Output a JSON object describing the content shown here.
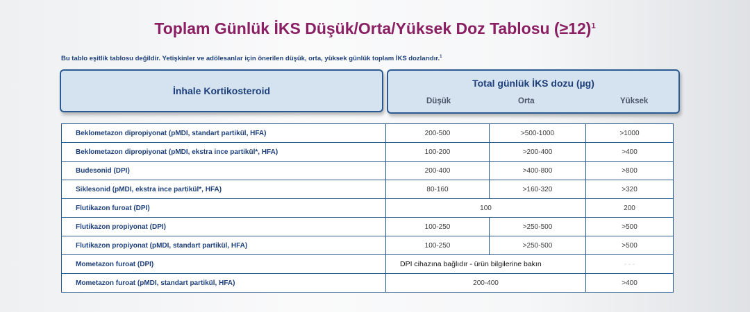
{
  "title": "Toplam Günlük İKS Düşük/Orta/Yüksek Doz Tablosu (≥12)",
  "title_sup": "1",
  "note": "Bu tablo eşitlik tablosu değildir. Yetişkinler ve adölesanlar için önerilen düşük, orta, yüksek günlük toplam İKS dozlarıdır.",
  "note_sup": "1",
  "header": {
    "left": "İnhale Kortikosteroid",
    "right": "Total günlük İKS dozu (µg)",
    "low": "Düşük",
    "mid": "Orta",
    "high": "Yüksek"
  },
  "rows": [
    {
      "name": "Beklometazon dipropiyonat (pMDI, standart partikül, HFA)",
      "low": "200-500",
      "mid": ">500-1000",
      "high": ">1000"
    },
    {
      "name": "Beklometazon dipropiyonat (pMDI, ekstra ince partikül*, HFA)",
      "low": "100-200",
      "mid": ">200-400",
      "high": ">400"
    },
    {
      "name": "Budesonid (DPI)",
      "low": "200-400",
      "mid": ">400-800",
      "high": ">800"
    },
    {
      "name": "Siklesonid (pMDI, ekstra ince partikül*, HFA)",
      "low": "80-160",
      "mid": ">160-320",
      "high": ">320"
    },
    {
      "name": "Flutikazon furoat (DPI)",
      "lowmid": "100",
      "high": "200"
    },
    {
      "name": "Flutikazon propiyonat (DPI)",
      "low": "100-250",
      "mid": ">250-500",
      "high": ">500"
    },
    {
      "name": "Flutikazon propiyonat (pMDI, standart partikül, HFA)",
      "low": "100-250",
      "mid": ">250-500",
      "high": ">500"
    },
    {
      "name": "Mometazon furoat (DPI)",
      "lowmid": "DPI cihazına bağlıdır - ürün bilgilerine bakın",
      "high": "- - -"
    },
    {
      "name": "Mometazon furoat (pMDI, standart partikül, HFA)",
      "lowmid": "200-400",
      "high": ">400"
    }
  ]
}
